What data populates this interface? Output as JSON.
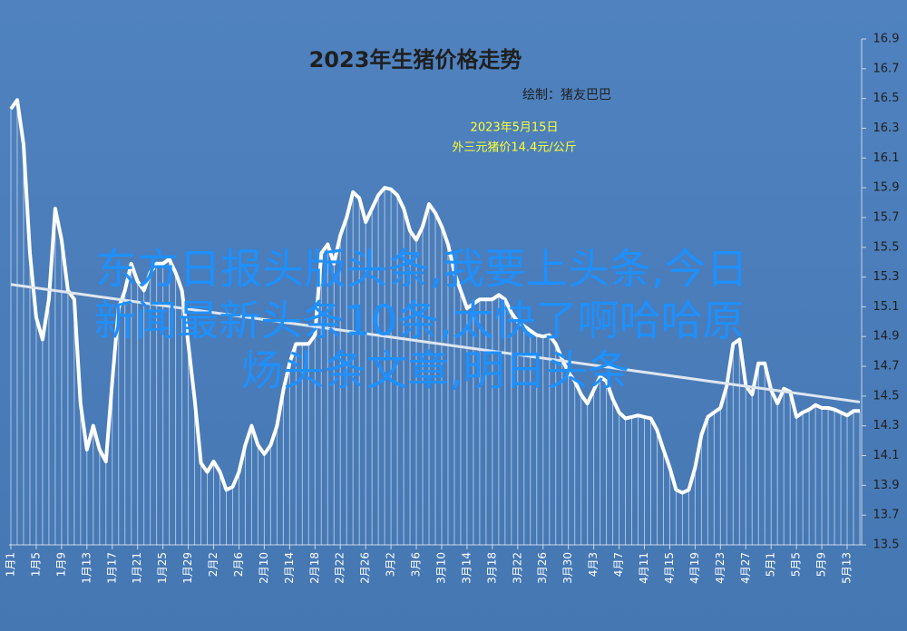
{
  "chart_data": {
    "type": "line",
    "title": "2023年生猪价格走势",
    "subtitle": "绘制：猪友巴巴",
    "annotation": [
      "2023年5月15日",
      "外三元猪价14.4元/公斤"
    ],
    "watermark": [
      "东方日报头版头条,我要上头条,今日",
      "新闻最新头条10条,太快了啊哈哈原",
      "炀头条文章,明日头条"
    ],
    "categories": [
      "1月1",
      null,
      null,
      null,
      "1月5",
      null,
      null,
      null,
      "1月9",
      null,
      null,
      null,
      "1月13",
      null,
      null,
      null,
      "1月17",
      null,
      null,
      null,
      "1月21",
      null,
      null,
      null,
      "1月25",
      null,
      null,
      null,
      "1月29",
      null,
      null,
      null,
      "2月2",
      null,
      null,
      null,
      "2月6",
      null,
      null,
      null,
      "2月10",
      null,
      null,
      null,
      "2月14",
      null,
      null,
      null,
      "2月18",
      null,
      null,
      null,
      "2月22",
      null,
      null,
      null,
      "2月26",
      null,
      null,
      null,
      "3月2",
      null,
      null,
      null,
      "3月6",
      null,
      null,
      null,
      "3月10",
      null,
      null,
      null,
      "3月14",
      null,
      null,
      null,
      "3月18",
      null,
      null,
      null,
      "3月22",
      null,
      null,
      null,
      "3月26",
      null,
      null,
      null,
      "3月30",
      null,
      null,
      null,
      "4月3",
      null,
      null,
      null,
      "4月7",
      null,
      null,
      null,
      "4月11",
      null,
      null,
      null,
      "4月15",
      null,
      null,
      null,
      "4月19",
      null,
      null,
      null,
      "4月23",
      null,
      null,
      null,
      "4月27",
      null,
      null,
      null,
      "5月1",
      null,
      null,
      null,
      "5月5",
      null,
      null,
      null,
      "5月9",
      null,
      null,
      null,
      "5月13",
      null,
      null
    ],
    "series": [
      {
        "color": "#ffffff",
        "values": [
          16.43,
          16.49,
          16.19,
          15.46,
          15.03,
          14.88,
          15.15,
          15.76,
          15.55,
          15.21,
          15.15,
          14.45,
          14.14,
          14.3,
          14.14,
          14.06,
          14.6,
          15.09,
          15.21,
          15.39,
          15.27,
          15.21,
          15.33,
          15.39,
          15.39,
          15.42,
          15.33,
          15.21,
          14.85,
          14.48,
          14.05,
          13.99,
          14.06,
          13.99,
          13.87,
          13.89,
          13.99,
          14.17,
          14.3,
          14.17,
          14.11,
          14.17,
          14.3,
          14.54,
          14.72,
          14.85,
          14.85,
          14.85,
          14.91,
          15.46,
          15.52,
          15.39,
          15.58,
          15.7,
          15.87,
          15.83,
          15.67,
          15.76,
          15.85,
          15.9,
          15.89,
          15.85,
          15.76,
          15.61,
          15.55,
          15.64,
          15.79,
          15.73,
          15.64,
          15.52,
          15.33,
          15.21,
          15.09,
          15.12,
          15.15,
          15.15,
          15.15,
          15.18,
          15.15,
          15.06,
          15.0,
          14.97,
          14.94,
          14.91,
          14.9,
          14.91,
          14.85,
          14.75,
          14.66,
          14.6,
          14.51,
          14.45,
          14.54,
          14.63,
          14.6,
          14.48,
          14.39,
          14.35,
          14.36,
          14.37,
          14.36,
          14.35,
          14.27,
          14.14,
          14.02,
          13.87,
          13.85,
          13.87,
          14.02,
          14.24,
          14.36,
          14.39,
          14.42,
          14.57,
          14.85,
          14.88,
          14.57,
          14.51,
          14.72,
          14.72,
          14.54,
          14.45,
          14.55,
          14.53,
          14.36,
          14.39,
          14.41,
          14.44,
          14.42,
          14.42,
          14.41,
          14.39,
          14.37,
          14.4,
          14.4
        ]
      }
    ],
    "trendline": [
      15.25,
      14.46
    ],
    "ylim": [
      13.5,
      16.9
    ],
    "yticks": [
      13.5,
      13.7,
      13.9,
      14.1,
      14.3,
      14.5,
      14.7,
      14.9,
      15.1,
      15.3,
      15.5,
      15.7,
      15.9,
      16.1,
      16.3,
      16.5,
      16.7,
      16.9
    ]
  }
}
